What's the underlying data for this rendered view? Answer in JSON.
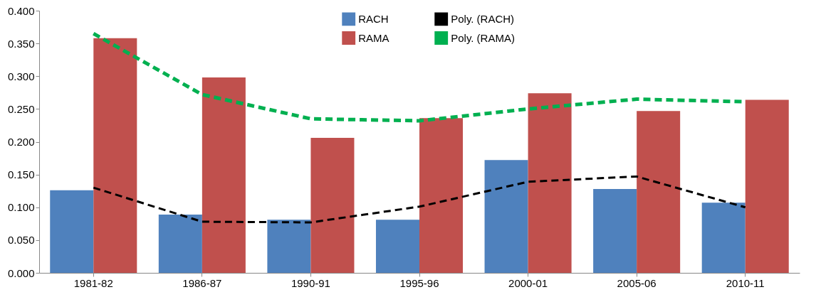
{
  "chart_data": {
    "type": "bar",
    "categories": [
      "1981-82",
      "1986-87",
      "1990-91",
      "1995-96",
      "2000-01",
      "2005-06",
      "2010-11"
    ],
    "series": [
      {
        "name": "RACH",
        "color": "#4f81bd",
        "values": [
          0.126,
          0.089,
          0.081,
          0.081,
          0.172,
          0.128,
          0.107
        ]
      },
      {
        "name": "RAMA",
        "color": "#c0504d",
        "values": [
          0.358,
          0.298,
          0.206,
          0.236,
          0.274,
          0.247,
          0.264
        ]
      },
      {
        "name": "Poly. (RACH)",
        "type": "line",
        "color": "#000000",
        "line_style": "dashed",
        "values": [
          0.13,
          0.078,
          0.077,
          0.101,
          0.139,
          0.147,
          0.1
        ]
      },
      {
        "name": "Poly. (RAMA)",
        "type": "line",
        "color": "#00b050",
        "line_style": "dashed",
        "values": [
          0.365,
          0.272,
          0.235,
          0.232,
          0.25,
          0.265,
          0.261
        ]
      }
    ],
    "ylim": [
      0,
      0.4
    ],
    "yticks": [
      {
        "value": 0,
        "label": "0.000"
      },
      {
        "value": 0.05,
        "label": "0.050"
      },
      {
        "value": 0.1,
        "label": "0.100"
      },
      {
        "value": 0.15,
        "label": "0.150"
      },
      {
        "value": 0.2,
        "label": "0.200"
      },
      {
        "value": 0.25,
        "label": "0.250"
      },
      {
        "value": 0.3,
        "label": "0.300"
      },
      {
        "value": 0.35,
        "label": "0.350"
      },
      {
        "value": 0.4,
        "label": "0.400"
      }
    ],
    "legend": "top",
    "grid": false
  }
}
